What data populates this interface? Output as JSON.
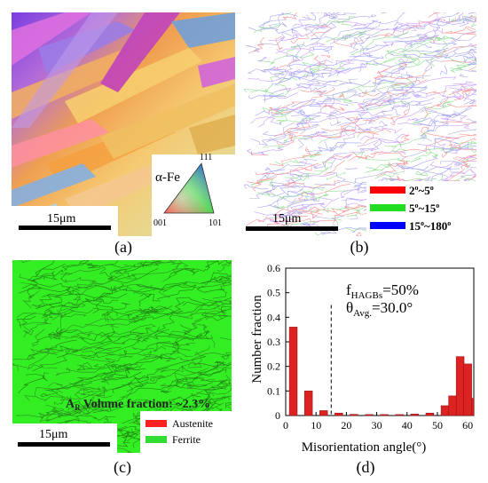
{
  "panel_a": {
    "caption": "(a)",
    "scalebar": "15μm",
    "ipf_phase": "α-Fe",
    "ipf_111": "111",
    "ipf_001": "001",
    "ipf_101": "101"
  },
  "panel_b": {
    "caption": "(b)",
    "scalebar": "15μm",
    "legend": [
      {
        "color": "#ff0000",
        "label_lo": "2",
        "label_hi": "5",
        "sep": "~"
      },
      {
        "color": "#22dd22",
        "label_lo": "5",
        "label_hi": "15",
        "sep": "~"
      },
      {
        "color": "#0000ff",
        "label_lo": "15",
        "label_hi": "180",
        "sep": "~"
      }
    ]
  },
  "panel_c": {
    "caption": "(c)",
    "scalebar": "15μm",
    "volume_label_main": "A",
    "volume_label_sub": "R",
    "volume_label_rest": " Volume fraction: ~2.3%",
    "legend": [
      {
        "color": "#ff2020",
        "label": "Austenite"
      },
      {
        "color": "#33dd33",
        "label": "Ferrite"
      }
    ]
  },
  "panel_d": {
    "caption": "(d)",
    "annotation1_main": "f",
    "annotation1_sub": "HAGBs",
    "annotation1_rest": "=50%",
    "annotation2_main": "θ",
    "annotation2_sub": "Avg.",
    "annotation2_rest": "=30.0°"
  },
  "chart_data": {
    "type": "bar",
    "xlabel": "Misorientation angle(°)",
    "ylabel": "Number fraction",
    "xlim": [
      0,
      62
    ],
    "ylim": [
      0,
      0.6
    ],
    "xticks": [
      0,
      10,
      20,
      30,
      40,
      50,
      60
    ],
    "yticks": [
      0,
      0.1,
      0.2,
      0.3,
      0.4,
      0.5,
      0.6
    ],
    "dashed_line_x": 15,
    "bar_width": 2.6,
    "bar_color": "#dd2222",
    "x": [
      2.5,
      7.5,
      12.5,
      17.5,
      22.5,
      27.5,
      32.5,
      37.5,
      42.5,
      47.5,
      52.5,
      55,
      57.5,
      60,
      62.5
    ],
    "values": [
      0.36,
      0.1,
      0.02,
      0.01,
      0.005,
      0.004,
      0.004,
      0.004,
      0.006,
      0.01,
      0.04,
      0.08,
      0.24,
      0.21,
      0.07
    ]
  }
}
